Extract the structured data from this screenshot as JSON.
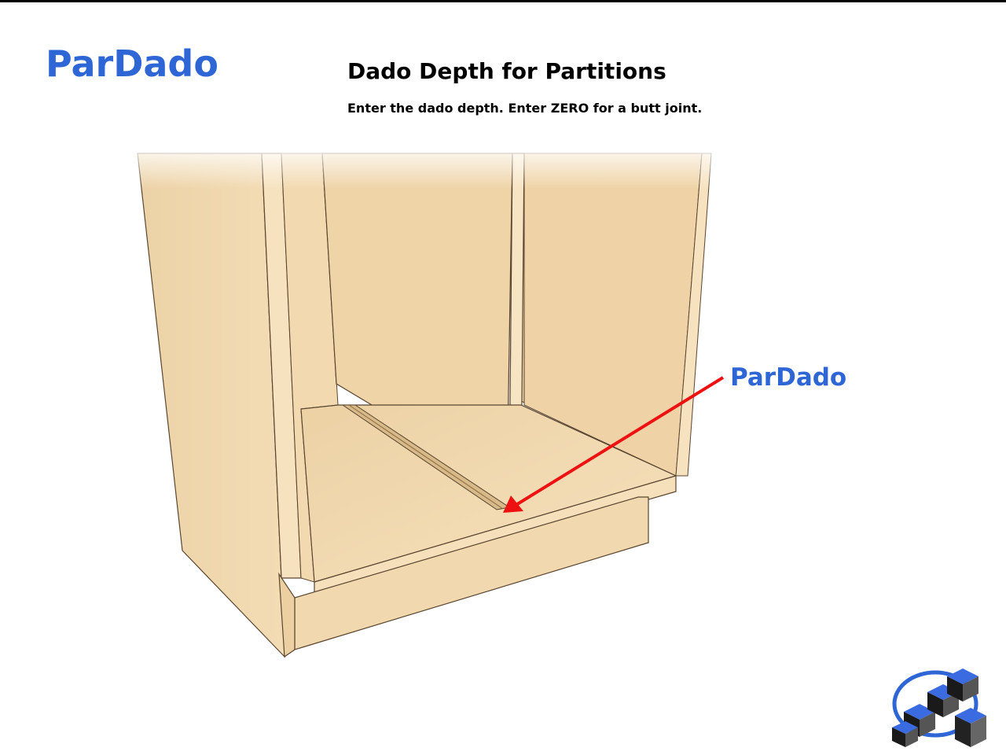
{
  "header": {
    "brand": "ParDado",
    "title": "Dado Depth for Partitions",
    "subtitle": "Enter the dado depth. Enter ZERO for a butt joint."
  },
  "diagram": {
    "callout_label": "ParDado",
    "arrow_color": "#ee1111",
    "wood_color": "#f0d9b2",
    "accent_color": "#2f66d6"
  }
}
